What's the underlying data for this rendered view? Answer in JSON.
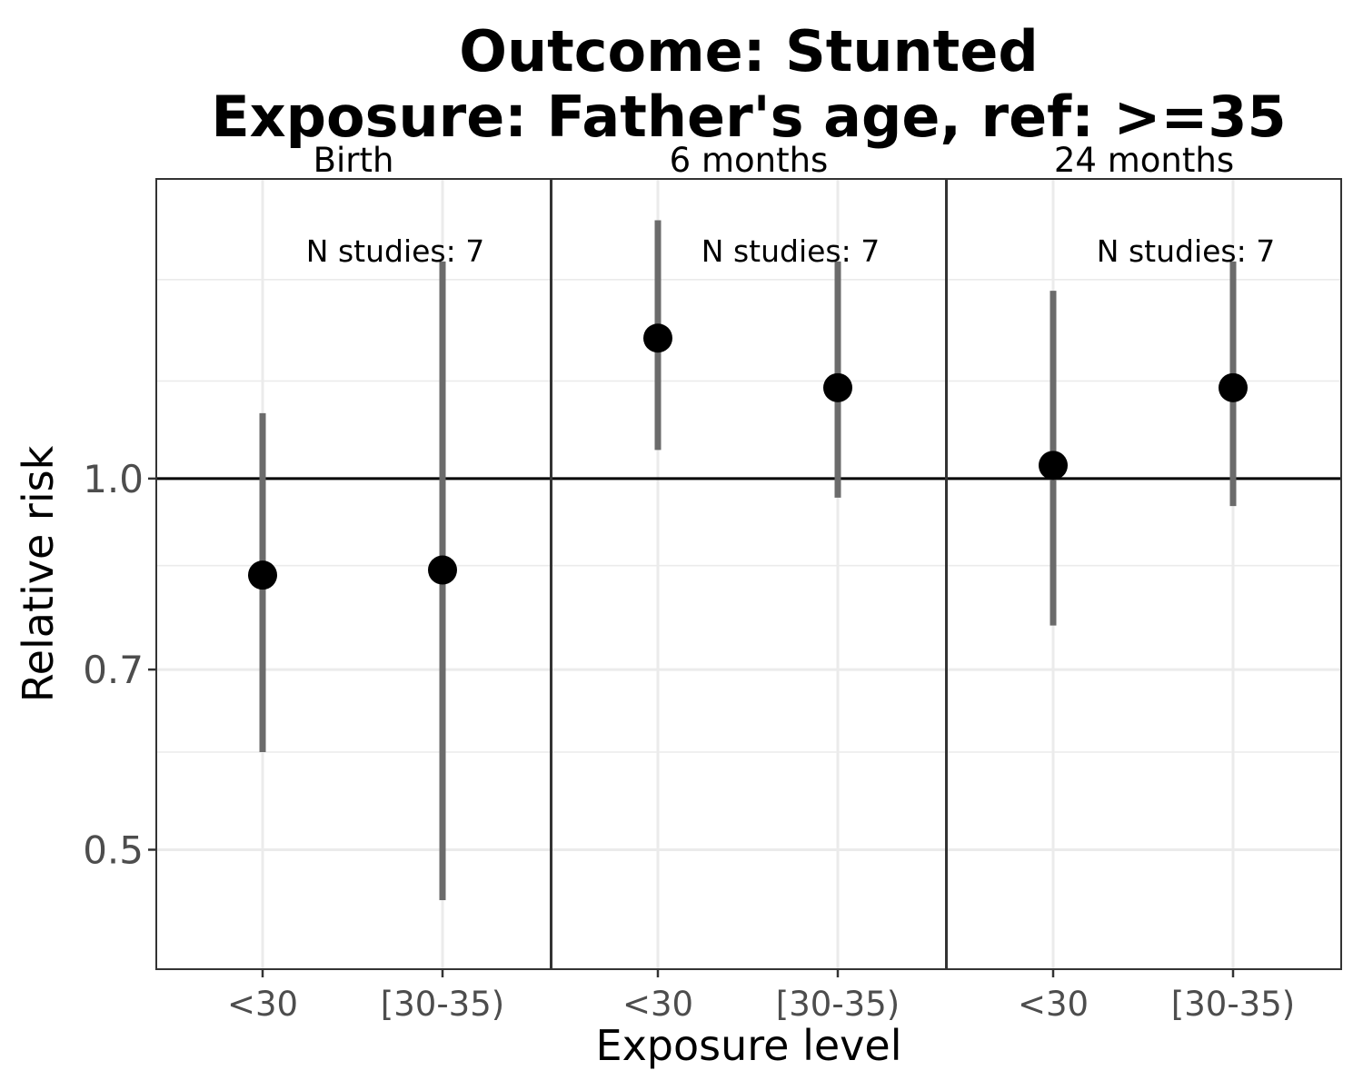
{
  "chart_data": {
    "type": "scatter",
    "title_lines": [
      "Outcome: Stunted",
      "Exposure: Father's age, ref: >=35"
    ],
    "xlabel": "Exposure level",
    "ylabel": "Relative risk",
    "y_scale": "log",
    "ylim": [
      0.4,
      1.75
    ],
    "yticks": [
      {
        "value": 0.5,
        "label": "0.5"
      },
      {
        "value": 0.7,
        "label": "0.7"
      },
      {
        "value": 1.0,
        "label": "1.0"
      }
    ],
    "minor_gridlines": [
      0.6,
      0.85,
      1.2,
      1.45
    ],
    "reference_line": 1.0,
    "categories": [
      "<30",
      "[30-35)"
    ],
    "grid": true,
    "colors": {
      "point": "#000000",
      "ci": "#6b6b6b",
      "grid": "#ebebeb",
      "reference": "#000000",
      "panel_border": "#333333"
    },
    "panels": [
      {
        "label": "Birth",
        "annotation": "N studies: 7",
        "points": [
          {
            "x": "<30",
            "estimate": 0.835,
            "ci_low": 0.6,
            "ci_high": 1.13
          },
          {
            "x": "[30-35)",
            "estimate": 0.843,
            "ci_low": 0.455,
            "ci_high": 1.5
          }
        ]
      },
      {
        "label": "6 months",
        "annotation": "N studies: 7",
        "points": [
          {
            "x": "<30",
            "estimate": 1.3,
            "ci_low": 1.055,
            "ci_high": 1.62
          },
          {
            "x": "[30-35)",
            "estimate": 1.185,
            "ci_low": 0.965,
            "ci_high": 1.5
          }
        ]
      },
      {
        "label": "24 months",
        "annotation": "N studies: 7",
        "points": [
          {
            "x": "<30",
            "estimate": 1.025,
            "ci_low": 0.76,
            "ci_high": 1.42
          },
          {
            "x": "[30-35)",
            "estimate": 1.185,
            "ci_low": 0.95,
            "ci_high": 1.5
          }
        ]
      }
    ]
  }
}
